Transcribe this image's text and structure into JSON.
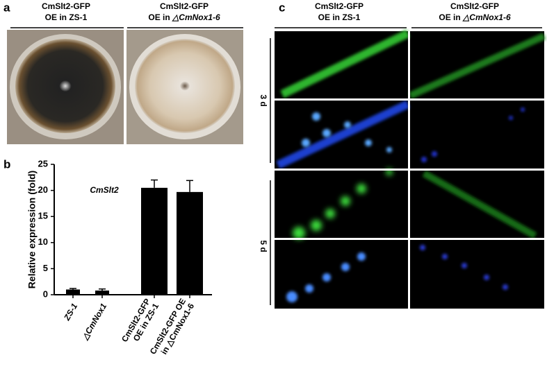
{
  "panel_a": {
    "label": "a",
    "columns": [
      {
        "line1": "CmSlt2-GFP",
        "line2": "OE in ZS-1"
      },
      {
        "line1": "CmSlt2-GFP",
        "line2_plain": "OE in ",
        "line2_italic": "△CmNox1-6"
      }
    ]
  },
  "chart_data": {
    "type": "bar",
    "label": "b",
    "ylabel": "Relative expression (fold)",
    "annotation": "CmSlt2",
    "categories": [
      "ZS-1",
      "△CmNox1",
      "CmSlt2-GFP\nOE in ZS-1",
      "CmSlt2-GFP OE\nin △CmNox1-6"
    ],
    "values": [
      1.0,
      0.8,
      20.5,
      19.7
    ],
    "errors": [
      0.2,
      0.3,
      1.5,
      2.2
    ],
    "color": "#000000",
    "ylim": [
      0,
      25
    ],
    "yticks": [
      0,
      5,
      10,
      15,
      20,
      25
    ]
  },
  "panel_c": {
    "label": "c",
    "columns": [
      {
        "line1": "CmSlt2-GFP",
        "line2": "OE in ZS-1"
      },
      {
        "line1": "CmSlt2-GFP",
        "line2_plain": "OE in ",
        "line2_italic": "△CmNox1-6"
      }
    ],
    "rows": [
      "3 d",
      "5 d"
    ]
  }
}
